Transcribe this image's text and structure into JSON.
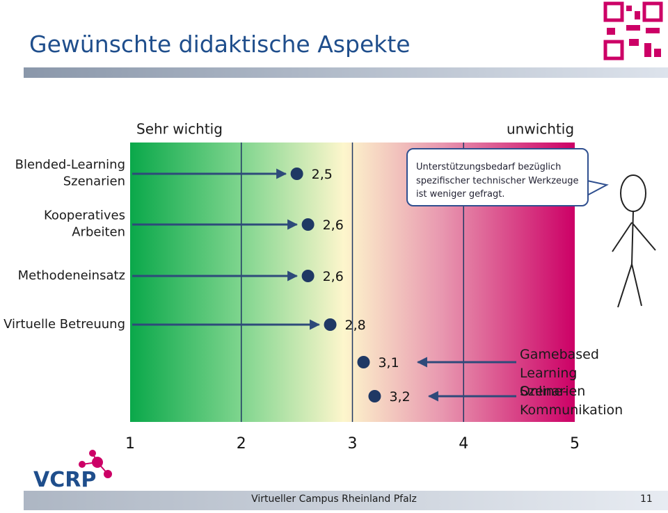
{
  "title": "Gewünschte didaktische Aspekte",
  "scale_left": "Sehr wichtig",
  "scale_right": "unwichtig",
  "callout": "Unterstützungsbedarf bezüglich spezifischer technischer Werkzeuge ist weniger gefragt.",
  "logo": "VCRP",
  "footer": "Virtueller Campus Rheinland Pfalz",
  "page_number": "11",
  "chart_data": {
    "type": "dot",
    "categories": [
      "Blended-Learning Szenarien",
      "Kooperatives Arbeiten",
      "Methodeneinsatz",
      "Virtuelle Betreuung",
      "Gamebased Learning Szenarien",
      "Online-Kommunikation"
    ],
    "values": [
      2.5,
      2.6,
      2.6,
      2.8,
      3.1,
      3.2
    ],
    "value_labels": [
      "2,5",
      "2,6",
      "2,6",
      "2,8",
      "3,1",
      "3,2"
    ],
    "color": "#1f3864",
    "xlim": [
      1,
      5
    ],
    "xticks": [
      1,
      2,
      3,
      4,
      5
    ]
  }
}
